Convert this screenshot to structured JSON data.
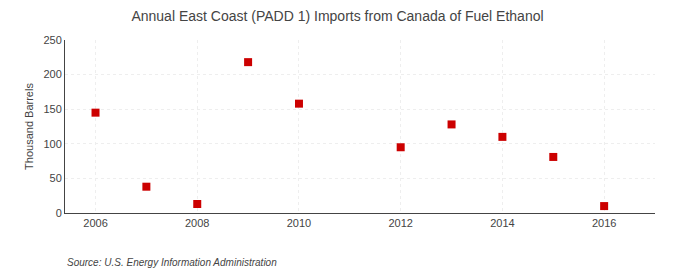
{
  "chart_data": {
    "type": "scatter",
    "title": "Annual East Coast (PADD 1) Imports from Canada of Fuel Ethanol",
    "ylabel": "Thousand Barrels",
    "annotations": [
      "Source: U.S. Energy Information Administration"
    ],
    "x": [
      2006,
      2007,
      2008,
      2009,
      2010,
      2011,
      2012,
      2013,
      2014,
      2015,
      2016
    ],
    "values": [
      145,
      38,
      13,
      218,
      158,
      null,
      95,
      128,
      110,
      81,
      10
    ],
    "color": "#cc0000",
    "marker": "square",
    "xlim": [
      2005.4,
      2017.0
    ],
    "ylim": [
      0,
      250
    ],
    "xticks": [
      2006,
      2008,
      2010,
      2012,
      2014,
      2016
    ],
    "yticks": [
      0,
      50,
      100,
      150,
      200,
      250
    ],
    "grid": true
  }
}
